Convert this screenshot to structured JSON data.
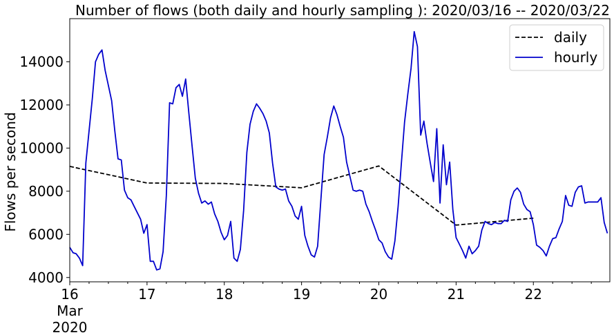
{
  "chart_data": {
    "type": "line",
    "title": "Number of flows (both daily and hourly sampling ): 2020/03/16 -- 2020/03/22",
    "xlabel": "",
    "ylabel": "Flows per second",
    "xlim": [
      16,
      22.99
    ],
    "ylim": [
      3800,
      16000
    ],
    "grid": false,
    "legend_position": "top-right",
    "x_ticks": [
      {
        "x": 16,
        "label": "16"
      },
      {
        "x": 17,
        "label": "17"
      },
      {
        "x": 18,
        "label": "18"
      },
      {
        "x": 19,
        "label": "19"
      },
      {
        "x": 20,
        "label": "20"
      },
      {
        "x": 21,
        "label": "21"
      },
      {
        "x": 22,
        "label": "22"
      }
    ],
    "x_sublabels": [
      "Mar",
      "2020"
    ],
    "y_ticks": [
      {
        "y": 4000,
        "label": "4000"
      },
      {
        "y": 6000,
        "label": "6000"
      },
      {
        "y": 8000,
        "label": "8000"
      },
      {
        "y": 10000,
        "label": "10000"
      },
      {
        "y": 12000,
        "label": "12000"
      },
      {
        "y": 14000,
        "label": "14000"
      }
    ],
    "series": [
      {
        "name": "daily",
        "color": "#000000",
        "line_style": "dashed",
        "points": [
          [
            16,
            9150
          ],
          [
            17,
            8380
          ],
          [
            18,
            8360
          ],
          [
            19,
            8160
          ],
          [
            20,
            9170
          ],
          [
            21,
            6430
          ],
          [
            22,
            6750
          ]
        ]
      },
      {
        "name": "hourly",
        "color": "#0000cc",
        "line_style": "solid",
        "points": [
          [
            16.0,
            5400
          ],
          [
            16.042,
            5150
          ],
          [
            16.083,
            5100
          ],
          [
            16.125,
            4900
          ],
          [
            16.167,
            4550
          ],
          [
            16.208,
            9300
          ],
          [
            16.25,
            10800
          ],
          [
            16.292,
            12300
          ],
          [
            16.333,
            14000
          ],
          [
            16.375,
            14350
          ],
          [
            16.417,
            14550
          ],
          [
            16.458,
            13600
          ],
          [
            16.5,
            12900
          ],
          [
            16.542,
            12200
          ],
          [
            16.583,
            10800
          ],
          [
            16.625,
            9500
          ],
          [
            16.667,
            9450
          ],
          [
            16.708,
            8050
          ],
          [
            16.75,
            7700
          ],
          [
            16.792,
            7600
          ],
          [
            16.833,
            7300
          ],
          [
            16.875,
            7000
          ],
          [
            16.917,
            6700
          ],
          [
            16.958,
            6050
          ],
          [
            17.0,
            6450
          ],
          [
            17.042,
            4750
          ],
          [
            17.083,
            4750
          ],
          [
            17.125,
            4350
          ],
          [
            17.167,
            4400
          ],
          [
            17.208,
            5200
          ],
          [
            17.25,
            7800
          ],
          [
            17.292,
            12100
          ],
          [
            17.333,
            12050
          ],
          [
            17.375,
            12800
          ],
          [
            17.417,
            12950
          ],
          [
            17.458,
            12400
          ],
          [
            17.5,
            13200
          ],
          [
            17.542,
            11600
          ],
          [
            17.583,
            10100
          ],
          [
            17.625,
            8600
          ],
          [
            17.667,
            7900
          ],
          [
            17.708,
            7450
          ],
          [
            17.75,
            7550
          ],
          [
            17.792,
            7400
          ],
          [
            17.833,
            7500
          ],
          [
            17.875,
            6950
          ],
          [
            17.917,
            6600
          ],
          [
            17.958,
            6100
          ],
          [
            18.0,
            5750
          ],
          [
            18.042,
            5950
          ],
          [
            18.083,
            6600
          ],
          [
            18.125,
            4900
          ],
          [
            18.167,
            4750
          ],
          [
            18.208,
            5300
          ],
          [
            18.25,
            7100
          ],
          [
            18.292,
            9800
          ],
          [
            18.333,
            11100
          ],
          [
            18.375,
            11700
          ],
          [
            18.417,
            12050
          ],
          [
            18.458,
            11850
          ],
          [
            18.5,
            11600
          ],
          [
            18.542,
            11250
          ],
          [
            18.583,
            10700
          ],
          [
            18.625,
            9300
          ],
          [
            18.667,
            8200
          ],
          [
            18.708,
            8100
          ],
          [
            18.75,
            8050
          ],
          [
            18.792,
            8100
          ],
          [
            18.833,
            7550
          ],
          [
            18.875,
            7300
          ],
          [
            18.917,
            6850
          ],
          [
            18.958,
            6700
          ],
          [
            19.0,
            7300
          ],
          [
            19.042,
            5950
          ],
          [
            19.083,
            5450
          ],
          [
            19.125,
            5050
          ],
          [
            19.167,
            4950
          ],
          [
            19.208,
            5450
          ],
          [
            19.25,
            7600
          ],
          [
            19.292,
            9700
          ],
          [
            19.333,
            10500
          ],
          [
            19.375,
            11400
          ],
          [
            19.417,
            11950
          ],
          [
            19.458,
            11550
          ],
          [
            19.5,
            11000
          ],
          [
            19.542,
            10500
          ],
          [
            19.583,
            9350
          ],
          [
            19.625,
            8700
          ],
          [
            19.667,
            8050
          ],
          [
            19.708,
            8000
          ],
          [
            19.75,
            8050
          ],
          [
            19.792,
            8000
          ],
          [
            19.833,
            7400
          ],
          [
            19.875,
            7050
          ],
          [
            19.917,
            6600
          ],
          [
            19.958,
            6200
          ],
          [
            20.0,
            5750
          ],
          [
            20.042,
            5600
          ],
          [
            20.083,
            5200
          ],
          [
            20.125,
            4950
          ],
          [
            20.167,
            4850
          ],
          [
            20.208,
            5700
          ],
          [
            20.25,
            7300
          ],
          [
            20.292,
            9300
          ],
          [
            20.333,
            11200
          ],
          [
            20.375,
            12500
          ],
          [
            20.417,
            13700
          ],
          [
            20.458,
            15400
          ],
          [
            20.5,
            14700
          ],
          [
            20.542,
            10600
          ],
          [
            20.583,
            11250
          ],
          [
            20.625,
            10200
          ],
          [
            20.667,
            9300
          ],
          [
            20.708,
            8450
          ],
          [
            20.75,
            10900
          ],
          [
            20.792,
            7450
          ],
          [
            20.833,
            10150
          ],
          [
            20.875,
            8300
          ],
          [
            20.917,
            9350
          ],
          [
            20.958,
            7150
          ],
          [
            21.0,
            5850
          ],
          [
            21.042,
            5550
          ],
          [
            21.083,
            5250
          ],
          [
            21.125,
            4900
          ],
          [
            21.167,
            5450
          ],
          [
            21.208,
            5100
          ],
          [
            21.25,
            5250
          ],
          [
            21.292,
            5450
          ],
          [
            21.333,
            6200
          ],
          [
            21.375,
            6600
          ],
          [
            21.417,
            6500
          ],
          [
            21.458,
            6450
          ],
          [
            21.5,
            6550
          ],
          [
            21.542,
            6500
          ],
          [
            21.583,
            6500
          ],
          [
            21.625,
            6650
          ],
          [
            21.667,
            6600
          ],
          [
            21.708,
            7600
          ],
          [
            21.75,
            8000
          ],
          [
            21.792,
            8150
          ],
          [
            21.833,
            7950
          ],
          [
            21.875,
            7400
          ],
          [
            21.917,
            7150
          ],
          [
            21.958,
            7050
          ],
          [
            22.0,
            6450
          ],
          [
            22.042,
            5500
          ],
          [
            22.083,
            5400
          ],
          [
            22.125,
            5250
          ],
          [
            22.167,
            5000
          ],
          [
            22.208,
            5450
          ],
          [
            22.25,
            5800
          ],
          [
            22.292,
            5850
          ],
          [
            22.333,
            6250
          ],
          [
            22.375,
            6600
          ],
          [
            22.417,
            7800
          ],
          [
            22.458,
            7350
          ],
          [
            22.5,
            7300
          ],
          [
            22.542,
            7950
          ],
          [
            22.583,
            8200
          ],
          [
            22.625,
            8250
          ],
          [
            22.667,
            7450
          ],
          [
            22.708,
            7500
          ],
          [
            22.75,
            7500
          ],
          [
            22.792,
            7500
          ],
          [
            22.833,
            7500
          ],
          [
            22.875,
            7700
          ],
          [
            22.917,
            6550
          ],
          [
            22.958,
            6050
          ]
        ]
      }
    ]
  }
}
